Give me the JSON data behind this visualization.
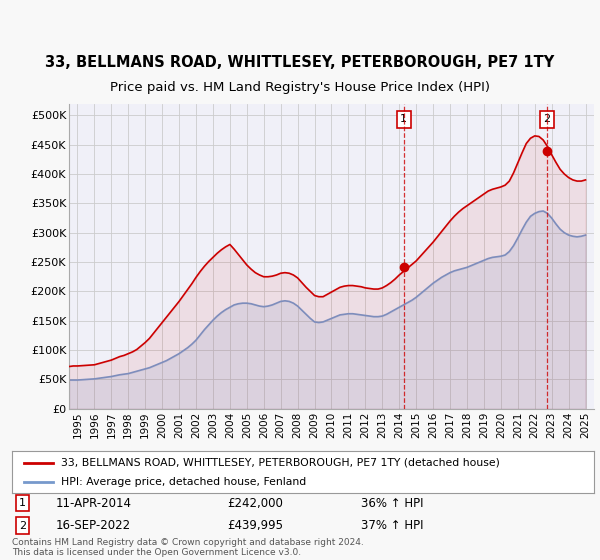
{
  "title": "33, BELLMANS ROAD, WHITTLESEY, PETERBOROUGH, PE7 1TY",
  "subtitle": "Price paid vs. HM Land Registry's House Price Index (HPI)",
  "title_fontsize": 10.5,
  "subtitle_fontsize": 9.5,
  "background_color": "#f8f8f8",
  "plot_bg_color": "#f0f0f8",
  "grid_color": "#cccccc",
  "red_color": "#cc0000",
  "blue_color": "#7799cc",
  "annotation_box_color": "#cc0000",
  "sale1_date_x": 2014.27,
  "sale1_price": 242000,
  "sale1_label": "1",
  "sale2_date_x": 2022.71,
  "sale2_price": 439995,
  "sale2_label": "2",
  "ylim": [
    0,
    520000
  ],
  "xlim": [
    1994.5,
    2025.5
  ],
  "yticks": [
    0,
    50000,
    100000,
    150000,
    200000,
    250000,
    300000,
    350000,
    400000,
    450000,
    500000
  ],
  "ytick_labels": [
    "£0",
    "£50K",
    "£100K",
    "£150K",
    "£200K",
    "£250K",
    "£300K",
    "£350K",
    "£400K",
    "£450K",
    "£500K"
  ],
  "xtick_years": [
    1995,
    1996,
    1997,
    1998,
    1999,
    2000,
    2001,
    2002,
    2003,
    2004,
    2005,
    2006,
    2007,
    2008,
    2009,
    2010,
    2011,
    2012,
    2013,
    2014,
    2015,
    2016,
    2017,
    2018,
    2019,
    2020,
    2021,
    2022,
    2023,
    2024,
    2025
  ],
  "legend_red_label": "33, BELLMANS ROAD, WHITTLESEY, PETERBOROUGH, PE7 1TY (detached house)",
  "legend_blue_label": "HPI: Average price, detached house, Fenland",
  "footer_text": "Contains HM Land Registry data © Crown copyright and database right 2024.\nThis data is licensed under the Open Government Licence v3.0.",
  "hpi_data": {
    "years": [
      1994.5,
      1994.75,
      1995.0,
      1995.25,
      1995.5,
      1995.75,
      1996.0,
      1996.25,
      1996.5,
      1996.75,
      1997.0,
      1997.25,
      1997.5,
      1997.75,
      1998.0,
      1998.25,
      1998.5,
      1998.75,
      1999.0,
      1999.25,
      1999.5,
      1999.75,
      2000.0,
      2000.25,
      2000.5,
      2000.75,
      2001.0,
      2001.25,
      2001.5,
      2001.75,
      2002.0,
      2002.25,
      2002.5,
      2002.75,
      2003.0,
      2003.25,
      2003.5,
      2003.75,
      2004.0,
      2004.25,
      2004.5,
      2004.75,
      2005.0,
      2005.25,
      2005.5,
      2005.75,
      2006.0,
      2006.25,
      2006.5,
      2006.75,
      2007.0,
      2007.25,
      2007.5,
      2007.75,
      2008.0,
      2008.25,
      2008.5,
      2008.75,
      2009.0,
      2009.25,
      2009.5,
      2009.75,
      2010.0,
      2010.25,
      2010.5,
      2010.75,
      2011.0,
      2011.25,
      2011.5,
      2011.75,
      2012.0,
      2012.25,
      2012.5,
      2012.75,
      2013.0,
      2013.25,
      2013.5,
      2013.75,
      2014.0,
      2014.25,
      2014.5,
      2014.75,
      2015.0,
      2015.25,
      2015.5,
      2015.75,
      2016.0,
      2016.25,
      2016.5,
      2016.75,
      2017.0,
      2017.25,
      2017.5,
      2017.75,
      2018.0,
      2018.25,
      2018.5,
      2018.75,
      2019.0,
      2019.25,
      2019.5,
      2019.75,
      2020.0,
      2020.25,
      2020.5,
      2020.75,
      2021.0,
      2021.25,
      2021.5,
      2021.75,
      2022.0,
      2022.25,
      2022.5,
      2022.75,
      2023.0,
      2023.25,
      2023.5,
      2023.75,
      2024.0,
      2024.25,
      2024.5,
      2024.75,
      2025.0
    ],
    "values": [
      49000,
      49000,
      49000,
      49500,
      50000,
      50500,
      51000,
      52000,
      53000,
      54000,
      55000,
      56500,
      58000,
      59000,
      60000,
      62000,
      64000,
      66000,
      68000,
      70000,
      73000,
      76000,
      79000,
      82000,
      86000,
      90000,
      94000,
      99000,
      104000,
      110000,
      117000,
      126000,
      135000,
      143000,
      151000,
      158000,
      164000,
      169000,
      173000,
      177000,
      179000,
      180000,
      180000,
      179000,
      177000,
      175000,
      174000,
      175000,
      177000,
      180000,
      183000,
      184000,
      183000,
      180000,
      175000,
      168000,
      161000,
      154000,
      148000,
      147000,
      148000,
      151000,
      154000,
      157000,
      160000,
      161000,
      162000,
      162000,
      161000,
      160000,
      159000,
      158000,
      157000,
      157000,
      158000,
      161000,
      165000,
      169000,
      173000,
      177000,
      181000,
      185000,
      190000,
      196000,
      202000,
      208000,
      214000,
      219000,
      224000,
      228000,
      232000,
      235000,
      237000,
      239000,
      241000,
      244000,
      247000,
      250000,
      253000,
      256000,
      258000,
      259000,
      260000,
      262000,
      268000,
      278000,
      291000,
      305000,
      318000,
      328000,
      333000,
      336000,
      337000,
      333000,
      325000,
      315000,
      306000,
      300000,
      296000,
      294000,
      293000,
      294000,
      296000
    ]
  },
  "red_data": {
    "years": [
      1994.5,
      1994.75,
      1995.0,
      1995.25,
      1995.5,
      1995.75,
      1996.0,
      1996.25,
      1996.5,
      1996.75,
      1997.0,
      1997.25,
      1997.5,
      1997.75,
      1998.0,
      1998.25,
      1998.5,
      1998.75,
      1999.0,
      1999.25,
      1999.5,
      1999.75,
      2000.0,
      2000.25,
      2000.5,
      2000.75,
      2001.0,
      2001.25,
      2001.5,
      2001.75,
      2002.0,
      2002.25,
      2002.5,
      2002.75,
      2003.0,
      2003.25,
      2003.5,
      2003.75,
      2004.0,
      2004.25,
      2004.5,
      2004.75,
      2005.0,
      2005.25,
      2005.5,
      2005.75,
      2006.0,
      2006.25,
      2006.5,
      2006.75,
      2007.0,
      2007.25,
      2007.5,
      2007.75,
      2008.0,
      2008.25,
      2008.5,
      2008.75,
      2009.0,
      2009.25,
      2009.5,
      2009.75,
      2010.0,
      2010.25,
      2010.5,
      2010.75,
      2011.0,
      2011.25,
      2011.5,
      2011.75,
      2012.0,
      2012.25,
      2012.5,
      2012.75,
      2013.0,
      2013.25,
      2013.5,
      2013.75,
      2014.0,
      2014.25,
      2014.5,
      2014.75,
      2015.0,
      2015.25,
      2015.5,
      2015.75,
      2016.0,
      2016.25,
      2016.5,
      2016.75,
      2017.0,
      2017.25,
      2017.5,
      2017.75,
      2018.0,
      2018.25,
      2018.5,
      2018.75,
      2019.0,
      2019.25,
      2019.5,
      2019.75,
      2020.0,
      2020.25,
      2020.5,
      2020.75,
      2021.0,
      2021.25,
      2021.5,
      2021.75,
      2022.0,
      2022.25,
      2022.5,
      2022.75,
      2023.0,
      2023.25,
      2023.5,
      2023.75,
      2024.0,
      2024.25,
      2024.5,
      2024.75,
      2025.0
    ],
    "values": [
      72000,
      73000,
      73000,
      73500,
      74000,
      74500,
      75000,
      77000,
      79000,
      81000,
      83000,
      86000,
      89000,
      91000,
      94000,
      97000,
      101000,
      107000,
      113000,
      120000,
      129000,
      138000,
      147000,
      156000,
      165000,
      174000,
      183000,
      193000,
      203000,
      213000,
      224000,
      234000,
      243000,
      251000,
      258000,
      265000,
      271000,
      276000,
      280000,
      272000,
      263000,
      254000,
      245000,
      238000,
      232000,
      228000,
      225000,
      225000,
      226000,
      228000,
      231000,
      232000,
      231000,
      228000,
      223000,
      215000,
      207000,
      200000,
      193000,
      191000,
      191000,
      195000,
      199000,
      203000,
      207000,
      209000,
      210000,
      210000,
      209000,
      208000,
      206000,
      205000,
      204000,
      204000,
      206000,
      210000,
      215000,
      221000,
      228000,
      234000,
      240000,
      246000,
      252000,
      260000,
      268000,
      276000,
      284000,
      293000,
      302000,
      311000,
      320000,
      328000,
      335000,
      341000,
      346000,
      351000,
      356000,
      361000,
      366000,
      371000,
      374000,
      376000,
      378000,
      381000,
      388000,
      402000,
      419000,
      436000,
      452000,
      461000,
      465000,
      464000,
      458000,
      447000,
      433000,
      420000,
      408000,
      400000,
      394000,
      390000,
      388000,
      388000,
      390000
    ]
  }
}
